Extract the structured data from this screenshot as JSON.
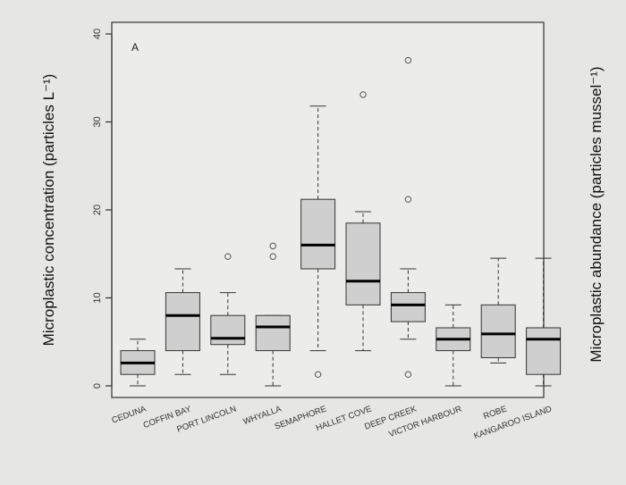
{
  "chart_data": {
    "type": "boxplot",
    "panel_label": "A",
    "ylabel_left": "Microplastic concentration (particles L⁻¹)",
    "ylabel_right": "Microplastic abundance (particles mussel⁻¹)",
    "ylim": [
      0,
      40
    ],
    "yticks": [
      "0",
      "10",
      "20",
      "30",
      "40"
    ],
    "categories": [
      "CEDUNA",
      "COFFIN BAY",
      "PORT LINCOLN",
      "WHYALLA",
      "SEMAPHORE",
      "HALLET COVE",
      "DEEP CREEK",
      "VICTOR HARBOUR",
      "ROBE",
      "KANGAROO ISLAND"
    ],
    "boxes": [
      {
        "min": 0,
        "q1": 1.3,
        "median": 2.6,
        "q3": 4.0,
        "max": 5.3,
        "outliers": []
      },
      {
        "min": 1.3,
        "q1": 4.0,
        "median": 8.0,
        "q3": 10.6,
        "max": 13.3,
        "outliers": []
      },
      {
        "min": 1.3,
        "q1": 4.7,
        "median": 5.4,
        "q3": 8.0,
        "max": 10.6,
        "outliers": [
          14.7
        ]
      },
      {
        "min": 0,
        "q1": 4.0,
        "median": 6.7,
        "q3": 8.0,
        "max": 8.0,
        "outliers": [
          14.7,
          15.9
        ]
      },
      {
        "min": 4.0,
        "q1": 13.3,
        "median": 16.0,
        "q3": 21.2,
        "max": 31.8,
        "outliers": [
          1.3
        ]
      },
      {
        "min": 4.0,
        "q1": 9.2,
        "median": 11.9,
        "q3": 18.5,
        "max": 19.8,
        "outliers": [
          33.1
        ]
      },
      {
        "min": 5.3,
        "q1": 7.3,
        "median": 9.2,
        "q3": 10.6,
        "max": 13.3,
        "outliers": [
          1.3,
          21.2,
          37.0
        ]
      },
      {
        "min": 0,
        "q1": 4.0,
        "median": 5.3,
        "q3": 6.6,
        "max": 9.2,
        "outliers": []
      },
      {
        "min": 2.6,
        "q1": 3.2,
        "median": 5.9,
        "q3": 9.2,
        "max": 14.5,
        "outliers": []
      },
      {
        "min": 0,
        "q1": 1.3,
        "median": 5.3,
        "q3": 6.6,
        "max": 14.5,
        "outliers": []
      }
    ],
    "colors": {
      "box_fill": "#cfcfcf",
      "stroke": "#333333",
      "median": "#000000",
      "background": "#e6e6e4",
      "plot_bg": "#ececea"
    }
  }
}
